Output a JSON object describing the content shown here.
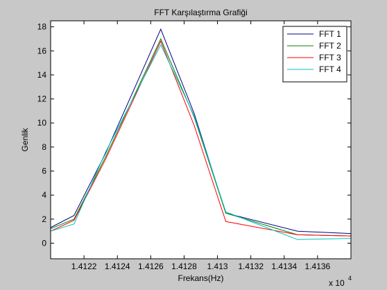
{
  "chart_data": {
    "type": "line",
    "title": "FFT Karşılaştırma Grafiği",
    "xlabel": "Frekans(Hz)",
    "ylabel": "Genlik",
    "x_exponent_label": "x 10",
    "x_exponent_power": "4",
    "xlim": [
      14120,
      14138
    ],
    "ylim": [
      -1.3,
      18.5
    ],
    "x_ticks": [
      14122,
      14124,
      14126,
      14128,
      14130,
      14132,
      14134,
      14136
    ],
    "x_tick_labels": [
      "1.4122",
      "1.4124",
      "1.4126",
      "1.4128",
      "1.413",
      "1.4132",
      "1.4134",
      "1.4136"
    ],
    "y_ticks": [
      0,
      2,
      4,
      6,
      8,
      10,
      12,
      14,
      16,
      18
    ],
    "y_tick_labels": [
      "0",
      "2",
      "4",
      "6",
      "8",
      "10",
      "12",
      "14",
      "16",
      "18"
    ],
    "grid": false,
    "legend_position": "top-right",
    "series": [
      {
        "name": "FFT 1",
        "color": "#00008b",
        "x": [
          14120,
          14121.4,
          14123.3,
          14126.6,
          14128.6,
          14130.5,
          14134.8,
          14138
        ],
        "y": [
          1.3,
          2.3,
          7.5,
          17.8,
          10.8,
          2.5,
          1.0,
          0.8
        ]
      },
      {
        "name": "FFT 2",
        "color": "#008000",
        "x": [
          14120,
          14121.4,
          14123.3,
          14126.6,
          14128.6,
          14130.5,
          14134.8,
          14138
        ],
        "y": [
          1.2,
          2.0,
          7.2,
          17.0,
          10.5,
          2.5,
          0.7,
          0.6
        ]
      },
      {
        "name": "FFT 3",
        "color": "#ff0000",
        "x": [
          14120,
          14121.4,
          14123.3,
          14126.6,
          14128.6,
          14130.5,
          14134.8,
          14138
        ],
        "y": [
          1.0,
          1.9,
          7.0,
          16.8,
          9.8,
          1.8,
          0.7,
          0.6
        ]
      },
      {
        "name": "FFT 4",
        "color": "#00bfbf",
        "x": [
          14120,
          14121.4,
          14123.3,
          14126.6,
          14128.6,
          14130.5,
          14134.8,
          14138
        ],
        "y": [
          1.0,
          1.6,
          7.6,
          16.5,
          10.6,
          2.6,
          0.3,
          0.4
        ]
      }
    ]
  }
}
